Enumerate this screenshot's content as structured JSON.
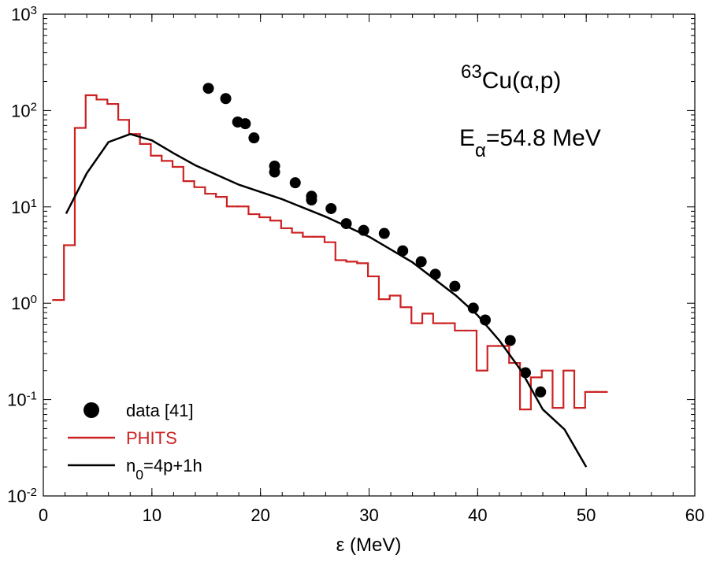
{
  "chart_data": {
    "type": "line",
    "x_label": "ε (MeV)",
    "xlim": [
      0,
      60
    ],
    "xticks": [
      0,
      10,
      20,
      30,
      40,
      50,
      60
    ],
    "ylim": [
      0.01,
      1000
    ],
    "log_y": true,
    "yticks": [
      {
        "value": 0.01,
        "label": "10",
        "exponent": "-2"
      },
      {
        "value": 0.1,
        "label": "10",
        "exponent": "-1"
      },
      {
        "value": 1,
        "label": "10",
        "exponent": "0"
      },
      {
        "value": 10,
        "label": "10",
        "exponent": "1"
      },
      {
        "value": 100,
        "label": "10",
        "exponent": "2"
      },
      {
        "value": 1000,
        "label": "10",
        "exponent": "3"
      }
    ],
    "legend": "lower left",
    "annotations": [
      [
        {
          "text": "63",
          "shift": "super"
        },
        {
          "text": "Cu(α,p)",
          "shift": "base"
        }
      ],
      [
        {
          "text": "E",
          "shift": "base"
        },
        {
          "text": "α",
          "shift": "sub"
        },
        {
          "text": "=54.8 MeV",
          "shift": "base"
        }
      ]
    ],
    "series": [
      {
        "type": "scatter",
        "color": "#000000",
        "name": [
          {
            "text": "data [41]",
            "shift": "base"
          }
        ],
        "x": [
          15.2,
          16.8,
          17.9,
          18.6,
          19.4,
          21.3,
          21.3,
          23.2,
          24.7,
          24.7,
          26.5,
          27.9,
          29.5,
          31.4,
          33.1,
          34.8,
          36.1,
          37.9,
          39.6,
          40.7,
          43.0,
          44.4,
          45.8
        ],
        "values": [
          170,
          133,
          76,
          73,
          52,
          26.5,
          23,
          17.8,
          12.9,
          11.8,
          9.6,
          6.7,
          5.7,
          5.3,
          3.5,
          2.7,
          2.0,
          1.5,
          0.89,
          0.67,
          0.41,
          0.19,
          0.12
        ]
      },
      {
        "type": "step",
        "color": "#cc2222",
        "name": [
          {
            "text": "PHITS",
            "shift": "base"
          }
        ],
        "bins": [
          0.9,
          1.9,
          2.9,
          3.9,
          4.9,
          5.9,
          6.9,
          7.9,
          8.9,
          9.9,
          10.9,
          11.9,
          12.9,
          13.9,
          14.9,
          15.9,
          16.9,
          17.9,
          18.9,
          19.9,
          20.9,
          21.9,
          22.9,
          23.9,
          24.9,
          25.9,
          26.9,
          27.9,
          28.9,
          29.9,
          30.9,
          31.9,
          32.9,
          33.9,
          34.9,
          35.9,
          36.9,
          37.9,
          38.9,
          39.9,
          40.9,
          41.9,
          42.9,
          43.9,
          44.9,
          45.9,
          46.9,
          47.9,
          48.9,
          49.9,
          50.9,
          51.9
        ],
        "values": [
          1.08,
          4.0,
          66,
          144,
          130,
          117,
          80,
          57,
          45,
          34,
          30,
          26,
          18.5,
          16,
          13.7,
          12.7,
          10.1,
          10.1,
          8.4,
          7.8,
          7.2,
          6.0,
          5.4,
          4.9,
          4.9,
          4.3,
          2.8,
          2.7,
          2.6,
          1.9,
          1.1,
          1.2,
          0.91,
          0.62,
          0.78,
          0.62,
          0.62,
          0.52,
          0.52,
          0.2,
          0.36,
          0.36,
          0.24,
          0.079,
          0.17,
          0.2,
          0.082,
          0.2,
          0.082,
          0.12,
          0.12
        ]
      },
      {
        "type": "line",
        "color": "#000000",
        "name": [
          {
            "text": "n",
            "shift": "base"
          },
          {
            "text": "0",
            "shift": "sub"
          },
          {
            "text": "=4p+1h",
            "shift": "base"
          }
        ],
        "x": [
          2.1,
          4.0,
          6.0,
          8.0,
          10.0,
          12.0,
          14.0,
          18.0,
          22.0,
          26.0,
          30.0,
          34.0,
          38.0,
          40.0,
          42.0,
          44.0,
          46.0,
          48.0,
          50.0
        ],
        "values": [
          8.5,
          22.3,
          47,
          57,
          49,
          36,
          27,
          17,
          12,
          7.9,
          4.9,
          2.66,
          1.2,
          0.75,
          0.41,
          0.2,
          0.079,
          0.049,
          0.02
        ]
      }
    ]
  }
}
